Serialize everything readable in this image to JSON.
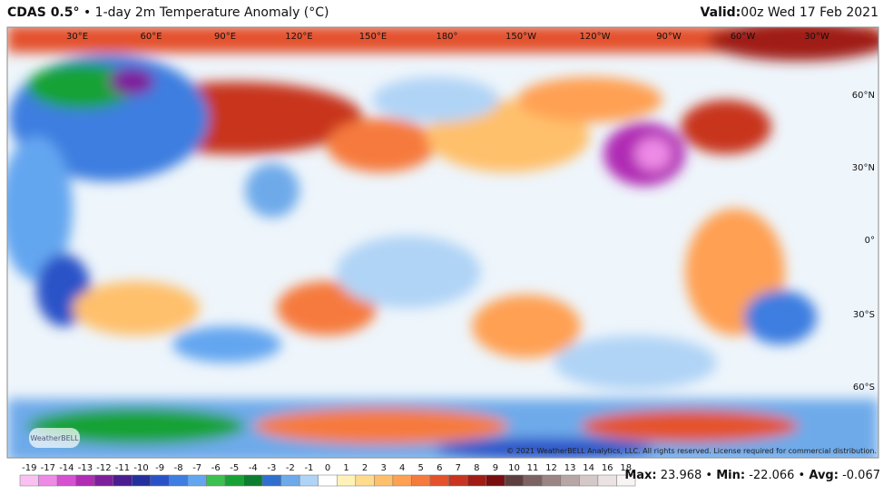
{
  "header": {
    "model": "CDAS 0.5°",
    "description": "• 1-day 2m Temperature Anomaly (°C)",
    "valid_label": "Valid:",
    "valid_time": "00z Wed 17 Feb 2021"
  },
  "map": {
    "lon_labels": [
      "30°E",
      "60°E",
      "90°E",
      "120°E",
      "150°E",
      "180°",
      "150°W",
      "120°W",
      "90°W",
      "60°W",
      "30°W"
    ],
    "lat_labels": [
      "60°N",
      "30°N",
      "0°",
      "30°S",
      "60°S"
    ],
    "credit": "© 2021 WeatherBELL Analytics, LLC. All rights reserved. License required for commercial distribution.",
    "logo": "WeatherBELL"
  },
  "colorbar": {
    "labels": [
      -19,
      -17,
      -14,
      -13,
      -12,
      -11,
      -10,
      -9,
      -8,
      -7,
      -6,
      -5,
      -4,
      -3,
      -2,
      -1,
      0,
      1,
      2,
      3,
      4,
      5,
      6,
      7,
      8,
      9,
      10,
      11,
      12,
      13,
      14,
      16,
      18
    ],
    "colors": [
      "#f9c0f2",
      "#ee8ae6",
      "#d650d2",
      "#b02cb4",
      "#7f1f9c",
      "#4a1e90",
      "#23309e",
      "#2a52c8",
      "#3e7ee0",
      "#63a6f0",
      "#3cc050",
      "#18a236",
      "#0d7d2f",
      "#2f6fd0",
      "#6eaaea",
      "#b0d4f6",
      "#ffffff",
      "#fff2b8",
      "#ffdb8e",
      "#ffc06c",
      "#ffa052",
      "#f67a3c",
      "#e4522c",
      "#c8341f",
      "#a01c15",
      "#780e0e",
      "#5e3f3f",
      "#7c6262",
      "#9a8484",
      "#b8a6a6",
      "#d4c8c8",
      "#ebe3e3",
      "#f8f4f4"
    ]
  },
  "stats": {
    "max_label": "Max:",
    "max": 23.968,
    "min_label": "Min:",
    "min": -22.066,
    "avg_label": "Avg:",
    "avg": -0.067
  }
}
